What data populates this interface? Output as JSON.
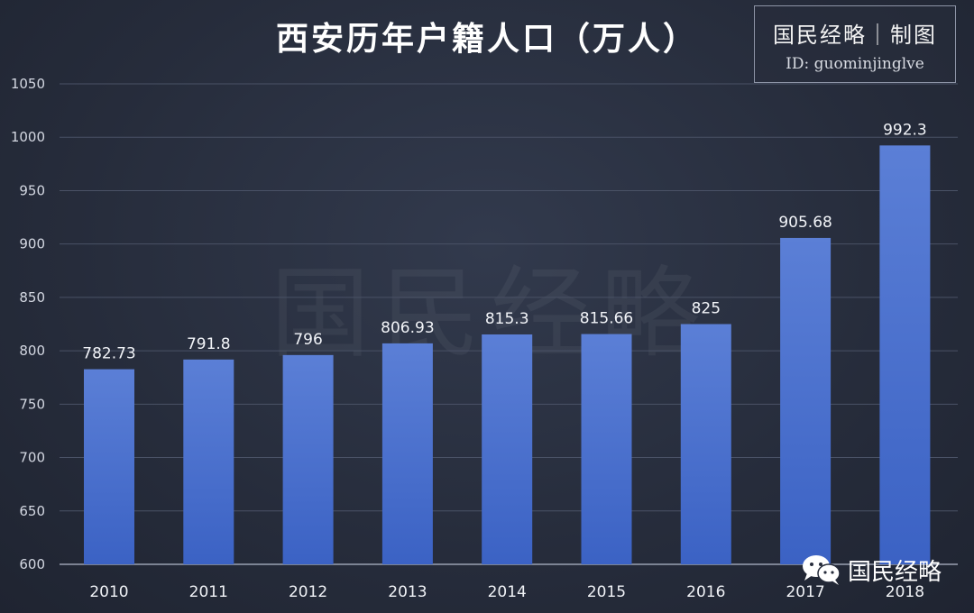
{
  "chart_data": {
    "type": "bar",
    "title": "西安历年户籍人口（万人）",
    "categories": [
      "2010",
      "2011",
      "2012",
      "2013",
      "2014",
      "2015",
      "2016",
      "2017",
      "2018"
    ],
    "values": [
      782.73,
      791.8,
      796,
      806.93,
      815.3,
      815.66,
      825,
      905.68,
      992.3
    ],
    "data_labels": [
      "782.73",
      "791.8",
      "796",
      "806.93",
      "815.3",
      "815.66",
      "825",
      "905.68",
      "992.3"
    ],
    "ylim": [
      600,
      1050
    ],
    "yticks": [
      600,
      650,
      700,
      750,
      800,
      850,
      900,
      950,
      1000,
      1050
    ],
    "grid": true,
    "legend": "none",
    "bar_color_top": "#5b7fd6",
    "bar_color_bottom": "#3b62c4"
  },
  "credit": {
    "line1": "国民经略｜制图",
    "line2": "ID: guominjinglve"
  },
  "watermark_text": "国民经略",
  "brand": {
    "icon": "wechat-icon",
    "text": "国民经略"
  }
}
